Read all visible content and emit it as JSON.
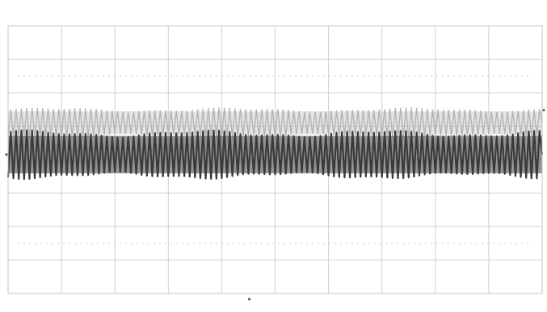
{
  "chart_data": {
    "type": "line",
    "title": "",
    "xlabel": "",
    "ylabel": "",
    "grid": true,
    "x_divisions": 10,
    "y_divisions": 8,
    "xlim": [
      0,
      10
    ],
    "ylim": [
      -4,
      4
    ],
    "series": [
      {
        "color": "#b4b4b4",
        "center": 1.1,
        "half_amplitude": 0.38,
        "cycles_per_division": 10
      },
      {
        "color": "#3a3a3a",
        "center": 0.15,
        "half_amplitude": 0.62,
        "cycles_per_division": 10
      }
    ]
  },
  "colors": {
    "background": "#ffffff",
    "frame": "#c4c4c4",
    "grid": "#cfcfcf",
    "dots": "#c8c8c8"
  }
}
